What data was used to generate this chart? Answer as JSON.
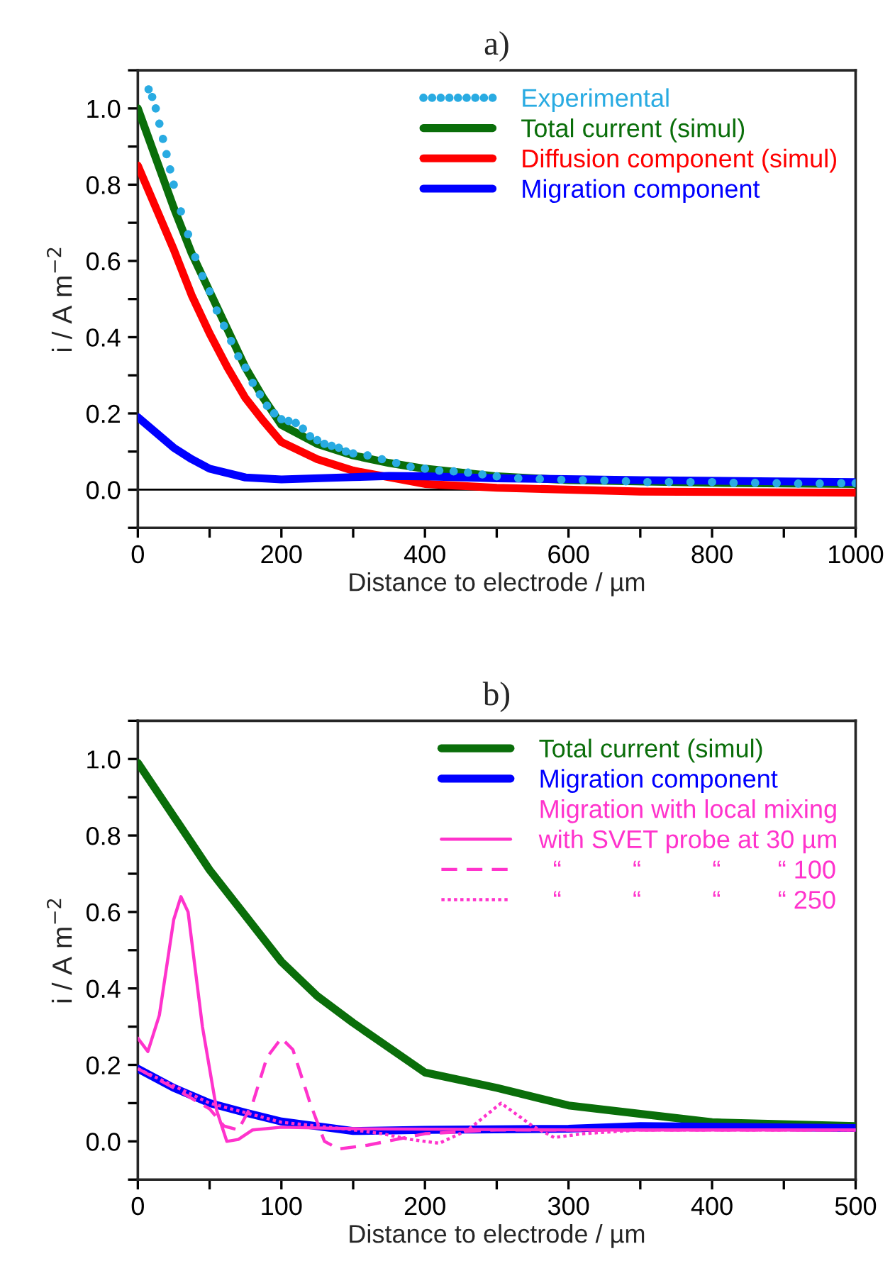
{
  "chart_data": [
    {
      "type": "line",
      "title": "a)",
      "xlabel": "Distance to electrode / µm",
      "ylabel": "i / A m$^{−2}$",
      "xlim": [
        0,
        1000
      ],
      "xticks": [
        0,
        {
          "value": 100,
          "label": null
        },
        200,
        {
          "value": 300,
          "label": null
        },
        400,
        {
          "value": 500,
          "label": null
        },
        600,
        {
          "value": 700,
          "label": null
        },
        800,
        {
          "value": 900,
          "label": null
        },
        1000
      ],
      "ylim": [
        -0.1,
        1.1
      ],
      "yticks": [
        {
          "value": -0.1,
          "label": null
        },
        {
          "value": 0,
          "label": "0.0"
        },
        {
          "value": 0.1,
          "label": null
        },
        0.2,
        {
          "value": 0.3,
          "label": null
        },
        0.4,
        {
          "value": 0.5,
          "label": null
        },
        0.6,
        {
          "value": 0.7,
          "label": null
        },
        0.8,
        {
          "value": 0.9,
          "label": null
        },
        {
          "value": 1.0,
          "label": "1.0"
        },
        {
          "value": 1.1,
          "label": null
        }
      ],
      "ref_lines": [
        {
          "axis": "y",
          "value": 0,
          "color": "#000000"
        }
      ],
      "legend": "top right",
      "grid": false,
      "series": [
        {
          "name": "Experimental",
          "type": "scatter",
          "marker": "circle",
          "color": "#29abe2",
          "x": [
            15,
            20,
            25,
            30,
            35,
            40,
            45,
            50,
            60,
            70,
            80,
            90,
            100,
            110,
            120,
            130,
            140,
            150,
            160,
            170,
            180,
            190,
            200,
            210,
            220,
            230,
            240,
            250,
            260,
            270,
            280,
            290,
            300,
            320,
            340,
            360,
            380,
            400,
            420,
            440,
            460,
            480,
            500,
            530,
            560,
            590,
            620,
            650,
            680,
            710,
            740,
            770,
            800,
            830,
            860,
            890,
            920,
            950,
            980,
            1000
          ],
          "values": [
            1.05,
            1.03,
            1.0,
            0.96,
            0.92,
            0.88,
            0.84,
            0.8,
            0.73,
            0.67,
            0.61,
            0.56,
            0.52,
            0.47,
            0.43,
            0.39,
            0.35,
            0.32,
            0.28,
            0.25,
            0.22,
            0.2,
            0.185,
            0.18,
            0.175,
            0.16,
            0.14,
            0.13,
            0.12,
            0.115,
            0.11,
            0.1,
            0.095,
            0.09,
            0.08,
            0.07,
            0.06,
            0.055,
            0.05,
            0.048,
            0.045,
            0.04,
            0.035,
            0.03,
            0.028,
            0.026,
            0.025,
            0.024,
            0.022,
            0.02,
            0.02,
            0.02,
            0.02,
            0.018,
            0.018,
            0.017,
            0.016,
            0.016,
            0.017,
            0.017
          ]
        },
        {
          "name": "Total current (simul)",
          "color": "#0a6e0a",
          "x": [
            0,
            25,
            50,
            75,
            100,
            125,
            150,
            175,
            200,
            250,
            300,
            350,
            400,
            500,
            600,
            800,
            1000
          ],
          "values": [
            1.0,
            0.87,
            0.74,
            0.62,
            0.52,
            0.42,
            0.32,
            0.24,
            0.17,
            0.12,
            0.09,
            0.07,
            0.055,
            0.035,
            0.025,
            0.018,
            0.015
          ]
        },
        {
          "name": "Diffusion component (simul)",
          "color": "#ff0000",
          "x": [
            0,
            25,
            50,
            75,
            100,
            125,
            150,
            175,
            200,
            250,
            300,
            400,
            500,
            700,
            1000
          ],
          "values": [
            0.85,
            0.74,
            0.63,
            0.51,
            0.41,
            0.32,
            0.24,
            0.18,
            0.125,
            0.08,
            0.05,
            0.015,
            0.005,
            -0.005,
            -0.008
          ]
        },
        {
          "name": "Migration component",
          "color": "#0000ff",
          "x": [
            0,
            25,
            50,
            75,
            100,
            150,
            200,
            300,
            350,
            400,
            500,
            700,
            1000
          ],
          "values": [
            0.19,
            0.15,
            0.11,
            0.08,
            0.055,
            0.032,
            0.027,
            0.033,
            0.036,
            0.035,
            0.03,
            0.025,
            0.02
          ]
        }
      ]
    },
    {
      "type": "line",
      "title": "b)",
      "xlabel": "Distance to electrode / µm",
      "ylabel": "i / A m$^{−2}$",
      "xlim": [
        0,
        500
      ],
      "xticks": [
        0,
        {
          "value": 50,
          "label": null
        },
        100,
        {
          "value": 150,
          "label": null
        },
        200,
        {
          "value": 250,
          "label": null
        },
        300,
        {
          "value": 350,
          "label": null
        },
        400,
        {
          "value": 450,
          "label": null
        },
        500
      ],
      "ylim": [
        -0.1,
        1.1
      ],
      "yticks": [
        {
          "value": -0.1,
          "label": null
        },
        {
          "value": 0,
          "label": "0.0"
        },
        {
          "value": 0.1,
          "label": null
        },
        0.2,
        {
          "value": 0.3,
          "label": null
        },
        0.4,
        {
          "value": 0.5,
          "label": null
        },
        0.6,
        {
          "value": 0.7,
          "label": null
        },
        0.8,
        {
          "value": 0.9,
          "label": null
        },
        {
          "value": 1.0,
          "label": "1.0"
        },
        {
          "value": 1.1,
          "label": null
        }
      ],
      "legend": "top right",
      "grid": false,
      "annotations": [
        "Migration with local mixing"
      ],
      "series": [
        {
          "name": "Total current (simul)",
          "color": "#0a6e0a",
          "x": [
            0,
            25,
            50,
            75,
            100,
            125,
            150,
            200,
            250,
            300,
            400,
            500
          ],
          "values": [
            0.99,
            0.85,
            0.71,
            0.59,
            0.47,
            0.38,
            0.31,
            0.18,
            0.14,
            0.094,
            0.05,
            0.04
          ]
        },
        {
          "name": "Migration component",
          "color": "#0000ff",
          "x": [
            0,
            25,
            50,
            75,
            100,
            150,
            200,
            300,
            350,
            500
          ],
          "values": [
            0.19,
            0.14,
            0.1,
            0.075,
            0.052,
            0.027,
            0.03,
            0.033,
            0.04,
            0.035
          ]
        },
        {
          "name": "with SVET probe at 30 µm",
          "color": "#ff33cc",
          "line_style": "solid",
          "x": [
            0,
            7,
            15,
            25,
            30,
            35,
            45,
            55,
            62,
            70,
            80,
            100,
            150,
            300,
            500
          ],
          "values": [
            0.27,
            0.235,
            0.33,
            0.58,
            0.64,
            0.6,
            0.3,
            0.08,
            0.0,
            0.005,
            0.03,
            0.037,
            0.033,
            0.03,
            0.03
          ]
        },
        {
          "name": "  “          “          “        “ 100",
          "color": "#ff33cc",
          "line_style": "dashed",
          "x": [
            0,
            25,
            50,
            60,
            70,
            80,
            90,
            100,
            108,
            120,
            130,
            140,
            160,
            200,
            250,
            500
          ],
          "values": [
            0.19,
            0.14,
            0.085,
            0.04,
            0.03,
            0.1,
            0.22,
            0.27,
            0.24,
            0.1,
            0.0,
            -0.02,
            -0.01,
            0.02,
            0.03,
            0.03
          ]
        },
        {
          "name": "  “          “          “        “ 250",
          "color": "#ff33cc",
          "line_style": "dotted",
          "x": [
            0,
            50,
            100,
            150,
            170,
            190,
            210,
            230,
            253,
            275,
            290,
            310,
            350,
            500
          ],
          "values": [
            0.19,
            0.1,
            0.05,
            0.03,
            0.02,
            0.005,
            -0.005,
            0.03,
            0.1,
            0.04,
            0.01,
            0.02,
            0.03,
            0.03
          ]
        }
      ]
    }
  ]
}
